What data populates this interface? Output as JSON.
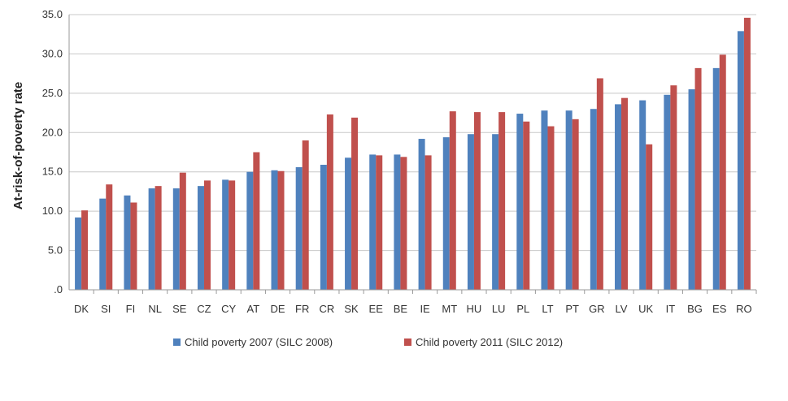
{
  "chart_data": {
    "type": "bar",
    "title": "",
    "xlabel": "",
    "ylabel": "At-risk-of-poverty rate",
    "ylim": [
      0,
      35
    ],
    "yticks": [
      0,
      5,
      10,
      15,
      20,
      25,
      30,
      35
    ],
    "ytick_labels": [
      ".0",
      "5.0",
      "10.0",
      "15.0",
      "20.0",
      "25.0",
      "30.0",
      "35.0"
    ],
    "grid": true,
    "legend_position": "bottom",
    "categories": [
      "DK",
      "SI",
      "FI",
      "NL",
      "SE",
      "CZ",
      "CY",
      "AT",
      "DE",
      "FR",
      "CR",
      "SK",
      "EE",
      "BE",
      "IE",
      "MT",
      "HU",
      "LU",
      "PL",
      "LT",
      "PT",
      "GR",
      "LV",
      "UK",
      "IT",
      "BG",
      "ES",
      "RO"
    ],
    "series": [
      {
        "name": "Child poverty 2007 (SILC 2008)",
        "color": "#4f81bd",
        "values": [
          9.2,
          11.6,
          12.0,
          12.9,
          12.9,
          13.2,
          14.0,
          15.0,
          15.2,
          15.6,
          15.9,
          16.8,
          17.2,
          17.2,
          19.2,
          19.4,
          19.8,
          19.8,
          22.4,
          22.8,
          22.8,
          23.0,
          23.6,
          24.1,
          24.8,
          25.5,
          28.2,
          32.9
        ]
      },
      {
        "name": "Child poverty 2011 (SILC 2012)",
        "color": "#c0504d",
        "values": [
          10.1,
          13.4,
          11.1,
          13.2,
          14.9,
          13.9,
          13.9,
          17.5,
          15.1,
          19.0,
          22.3,
          21.9,
          17.1,
          16.9,
          17.1,
          22.7,
          22.6,
          22.6,
          21.4,
          20.8,
          21.7,
          26.9,
          24.4,
          18.5,
          26.0,
          28.2,
          29.9,
          34.6
        ]
      }
    ]
  }
}
